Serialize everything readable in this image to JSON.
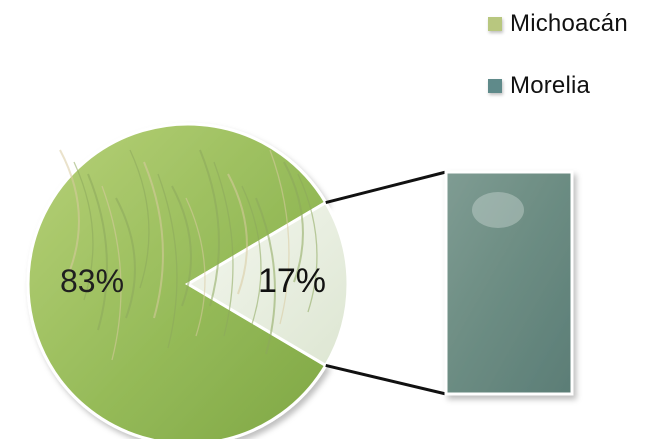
{
  "chart_data": {
    "type": "pie",
    "slices": [
      {
        "name": "Michoacán",
        "value": 83,
        "label": "83%"
      },
      {
        "name": "Morelia",
        "value": 17,
        "label": "17%"
      }
    ],
    "legend_position": "top-right",
    "colors": {
      "michoacan": "#a9c36a",
      "morelia": "#5b7d76"
    }
  },
  "legend": {
    "items": [
      {
        "label": "Michoacán",
        "color": "#b8c77f"
      },
      {
        "label": "Morelia",
        "color": "#5f8a8a"
      }
    ]
  }
}
